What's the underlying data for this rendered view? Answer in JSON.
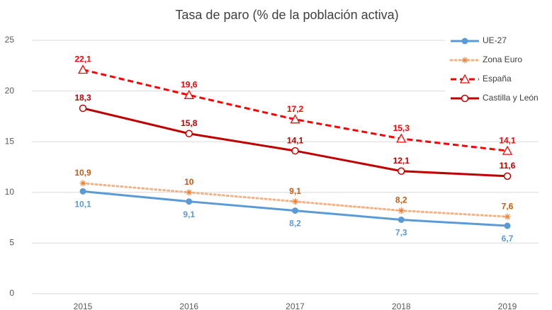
{
  "chart_data": {
    "type": "line",
    "title": "Tasa de paro (% de la población activa)",
    "categories": [
      "2015",
      "2016",
      "2017",
      "2018",
      "2019"
    ],
    "ylim": [
      0,
      25
    ],
    "yticks": [
      0,
      5,
      10,
      15,
      20,
      25
    ],
    "grid": true,
    "legend": "top-right",
    "series": [
      {
        "name": "UE-27",
        "color": "#5b9bd5",
        "label_color": "#5b9bd5",
        "marker": "dot",
        "dash": "solid",
        "values": [
          10.1,
          9.1,
          8.2,
          7.3,
          6.7
        ],
        "value_labels": [
          "10,1",
          "9,1",
          "8,2",
          "7,3",
          "6,7"
        ]
      },
      {
        "name": "Zona Euro",
        "color": "#f4b183",
        "label_color": "#c55a11",
        "marker": "asterisk",
        "dash": "dotted",
        "values": [
          10.9,
          10,
          9.1,
          8.2,
          7.6
        ],
        "value_labels": [
          "10,9",
          "10",
          "9,1",
          "8,2",
          "7,6"
        ]
      },
      {
        "name": "España",
        "color": "#ff0000",
        "label_color": "#ff0000",
        "marker": "triangle",
        "dash": "dashed",
        "values": [
          22.1,
          19.6,
          17.2,
          15.3,
          14.1
        ],
        "value_labels": [
          "22,1",
          "19,6",
          "17,2",
          "15,3",
          "14,1"
        ]
      },
      {
        "name": "Castilla y León",
        "color": "#c00000",
        "label_color": "#c00000",
        "marker": "circle",
        "dash": "solid",
        "values": [
          18.3,
          15.8,
          14.1,
          12.1,
          11.6
        ],
        "value_labels": [
          "18,3",
          "15,8",
          "14,1",
          "12,1",
          "11,6"
        ]
      }
    ]
  }
}
